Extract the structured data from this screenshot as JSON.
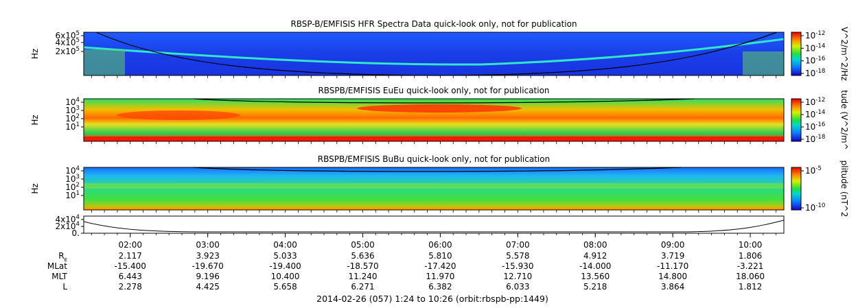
{
  "chart_data": [
    {
      "type": "heatmap",
      "title": "RBSP-B/EMFISIS  HFR Spectra Data quick-look only, not for publication",
      "ylabel": "Hz",
      "yticks": [
        {
          "label": "2x10",
          "sup": "5"
        },
        {
          "label": "4x10",
          "sup": "5"
        },
        {
          "label": "6x10",
          "sup": "5"
        }
      ],
      "colorbar": {
        "label": "V^2/m^2/Hz",
        "ticks": [
          {
            "base": "10",
            "exp": "-12"
          },
          {
            "base": "10",
            "exp": "-14"
          },
          {
            "base": "10",
            "exp": "-16"
          },
          {
            "base": "10",
            "exp": "-18"
          }
        ]
      }
    },
    {
      "type": "heatmap",
      "title": "RBSPB/EMFISIS  EuEu quick-look only, not for publication",
      "ylabel": "Hz",
      "yticks": [
        {
          "label": "10",
          "sup": "4"
        },
        {
          "label": "10",
          "sup": "3"
        },
        {
          "label": "10",
          "sup": "2"
        },
        {
          "label": "10",
          "sup": "1"
        }
      ],
      "colorbar": {
        "label": "tude (V^2/m^",
        "ticks": [
          {
            "base": "10",
            "exp": "-12"
          },
          {
            "base": "10",
            "exp": "-14"
          },
          {
            "base": "10",
            "exp": "-16"
          },
          {
            "base": "10",
            "exp": "-18"
          }
        ]
      }
    },
    {
      "type": "heatmap",
      "title": "RBSPB/EMFISIS  BuBu quick-look only, not for publication",
      "ylabel": "Hz",
      "yticks": [
        {
          "label": "10",
          "sup": "4"
        },
        {
          "label": "10",
          "sup": "3"
        },
        {
          "label": "10",
          "sup": "2"
        },
        {
          "label": "10",
          "sup": "1"
        }
      ],
      "colorbar": {
        "label": "plitude (nT^2",
        "ticks": [
          {
            "base": "10",
            "exp": "-5"
          },
          {
            "base": "10",
            "exp": "-10"
          }
        ]
      }
    },
    {
      "type": "line",
      "yticks": [
        {
          "label": "4x10",
          "sup": "4"
        },
        {
          "label": "2x10",
          "sup": "4"
        },
        {
          "label": "0.",
          "sup": ""
        }
      ]
    }
  ],
  "time_axis": {
    "tick_labels": [
      "02:00",
      "03:00",
      "04:00",
      "05:00",
      "06:00",
      "07:00",
      "08:00",
      "09:00",
      "10:00"
    ]
  },
  "ephemeris": {
    "rows": [
      {
        "label": "R",
        "sub": "E",
        "values": [
          "2.117",
          "3.923",
          "5.033",
          "5.636",
          "5.810",
          "5.578",
          "4.912",
          "3.719",
          "1.806"
        ]
      },
      {
        "label": "MLat",
        "sub": "",
        "values": [
          "-15.400",
          "-19.670",
          "-19.400",
          "-18.570",
          "-17.420",
          "-15.930",
          "-14.000",
          "-11.170",
          "-3.221"
        ]
      },
      {
        "label": "MLT",
        "sub": "",
        "values": [
          "6.443",
          "9.196",
          "10.400",
          "11.240",
          "11.970",
          "12.710",
          "13.560",
          "14.800",
          "18.060"
        ]
      },
      {
        "label": "L",
        "sub": "",
        "values": [
          "2.278",
          "4.425",
          "5.658",
          "6.271",
          "6.382",
          "6.033",
          "5.218",
          "3.864",
          "1.812"
        ]
      }
    ]
  },
  "footer": "2014-02-26 (057) 1:24 to 10:26 (orbit:rbspb-pp:1449)"
}
